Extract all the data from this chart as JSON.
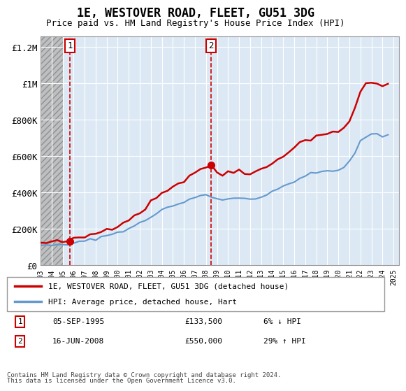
{
  "title": "1E, WESTOVER ROAD, FLEET, GU51 3DG",
  "subtitle": "Price paid vs. HM Land Registry's House Price Index (HPI)",
  "legend_line1": "1E, WESTOVER ROAD, FLEET, GU51 3DG (detached house)",
  "legend_line2": "HPI: Average price, detached house, Hart",
  "footnote1": "Contains HM Land Registry data © Crown copyright and database right 2024.",
  "footnote2": "This data is licensed under the Open Government Licence v3.0.",
  "sale1_label": "1",
  "sale1_date": "05-SEP-1995",
  "sale1_price": "£133,500",
  "sale1_hpi": "6% ↓ HPI",
  "sale2_label": "2",
  "sale2_date": "16-JUN-2008",
  "sale2_price": "£550,000",
  "sale2_hpi": "29% ↑ HPI",
  "sale1_x": 1995.68,
  "sale1_y": 133500,
  "sale2_x": 2008.46,
  "sale2_y": 550000,
  "ylim": [
    0,
    1260000
  ],
  "xlim_start": 1993,
  "xlim_end": 2025.5,
  "hatch_end_x": 1995.0,
  "background_color": "#dce9f5",
  "grid_color": "#ffffff",
  "price_line_color": "#cc0000",
  "hpi_line_color": "#6699cc",
  "marker_color": "#cc0000",
  "dashed_line_color": "#cc0000",
  "yticks": [
    0,
    200000,
    400000,
    600000,
    800000,
    1000000,
    1200000
  ],
  "ytick_labels": [
    "£0",
    "£200K",
    "£400K",
    "£600K",
    "£800K",
    "£1M",
    "£1.2M"
  ],
  "xticks": [
    1993,
    1994,
    1995,
    1996,
    1997,
    1998,
    1999,
    2000,
    2001,
    2002,
    2003,
    2004,
    2005,
    2006,
    2007,
    2008,
    2009,
    2010,
    2011,
    2012,
    2013,
    2014,
    2015,
    2016,
    2017,
    2018,
    2019,
    2020,
    2021,
    2022,
    2023,
    2024,
    2025
  ]
}
